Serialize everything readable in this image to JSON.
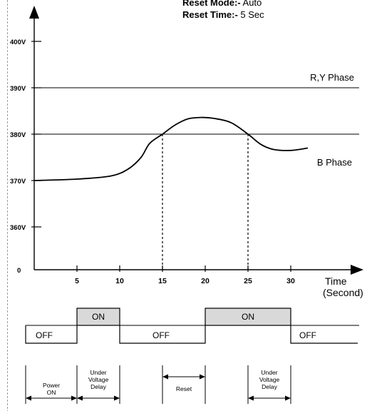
{
  "header": {
    "reset_mode_label": "Reset Mode:-",
    "reset_mode_value": "Auto",
    "reset_time_label": "Reset Time:-",
    "reset_time_value": "5 Sec"
  },
  "chart_data": {
    "type": "line",
    "xlabel": "Time",
    "xunit": "(Second)",
    "x_ticks": [
      5,
      10,
      15,
      20,
      25,
      30
    ],
    "y_ticks": [
      {
        "value": 0,
        "label": "0"
      },
      {
        "value": 360,
        "label": "360V"
      },
      {
        "value": 370,
        "label": "370V"
      },
      {
        "value": 380,
        "label": "380V"
      },
      {
        "value": 390,
        "label": "390V"
      },
      {
        "value": 400,
        "label": "400V"
      }
    ],
    "ry_phase": {
      "label": "R,Y Phase",
      "voltage": 390
    },
    "threshold": {
      "voltage": 380
    },
    "b_phase": {
      "label": "B Phase",
      "points": [
        [
          0,
          370
        ],
        [
          5,
          370.3
        ],
        [
          9,
          371
        ],
        [
          11,
          372.5
        ],
        [
          12.5,
          375
        ],
        [
          13.5,
          378
        ],
        [
          15,
          380
        ],
        [
          16.5,
          382
        ],
        [
          18,
          383.3
        ],
        [
          19.5,
          383.6
        ],
        [
          21,
          383.4
        ],
        [
          23,
          382.5
        ],
        [
          25,
          380
        ],
        [
          26.5,
          377.8
        ],
        [
          28,
          376.7
        ],
        [
          30,
          376.5
        ],
        [
          32,
          377
        ]
      ]
    },
    "crossings": [
      15,
      25
    ]
  },
  "relay_states": [
    {
      "label": "OFF",
      "state": "off",
      "from": 0,
      "to": 5
    },
    {
      "label": "ON",
      "state": "on",
      "from": 5,
      "to": 10
    },
    {
      "label": "OFF",
      "state": "off",
      "from": 10,
      "to": 20
    },
    {
      "label": "ON",
      "state": "on",
      "from": 20,
      "to": 30
    },
    {
      "label": "OFF",
      "state": "off",
      "from": 30,
      "to": 38
    }
  ],
  "intervals": [
    {
      "label_lines": [
        "Power",
        "ON"
      ],
      "from": 0,
      "to": 5
    },
    {
      "label_lines": [
        "Under",
        "Voltage",
        "Delay"
      ],
      "from": 5,
      "to": 10
    },
    {
      "label_lines": [
        "Reset"
      ],
      "from": 15,
      "to": 20
    },
    {
      "label_lines": [
        "Under",
        "Voltage",
        "Delay"
      ],
      "from": 25,
      "to": 30
    }
  ],
  "colors": {
    "line": "#000000",
    "on_fill": "#d9d9d9",
    "dashed_border": "#9a9a9a"
  }
}
